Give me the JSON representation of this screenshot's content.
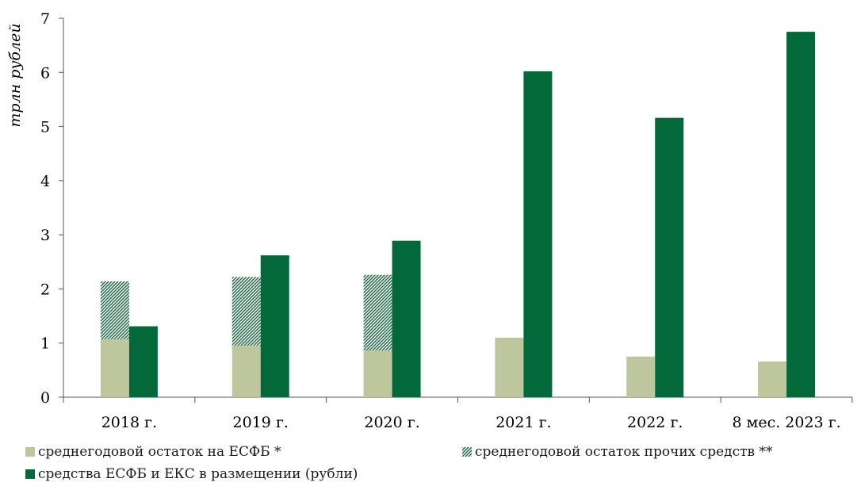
{
  "chart_data": {
    "type": "bar",
    "title": "",
    "xlabel": "",
    "ylabel": "трлн рублей",
    "ylim": [
      0,
      7
    ],
    "yticks": [
      "0",
      "1",
      "2",
      "3",
      "4",
      "5",
      "6",
      "7"
    ],
    "grid": false,
    "legend_position": "bottom",
    "categories": [
      "2018 г.",
      "2019 г.",
      "2020 г.",
      "2021 г.",
      "2022 г.",
      "8 мес. 2023 г."
    ],
    "series": [
      {
        "name": "среднегодовой остаток на ЕСФБ *",
        "color": "#bdc69c",
        "stack": "a",
        "values": [
          1.07,
          0.95,
          0.86,
          1.1,
          0.75,
          0.66
        ]
      },
      {
        "name": "среднегодовой остаток прочих средств **",
        "color": "#1e6b45",
        "pattern": "diagonal-hatch",
        "stack": "a",
        "values": [
          1.07,
          1.27,
          1.4,
          0,
          0,
          0
        ]
      },
      {
        "name": "средства ЕСФБ и ЕКС в размещении (рубли)",
        "color": "#04693a",
        "stack": "b",
        "values": [
          1.31,
          2.62,
          2.89,
          6.02,
          5.16,
          6.75
        ]
      }
    ]
  }
}
